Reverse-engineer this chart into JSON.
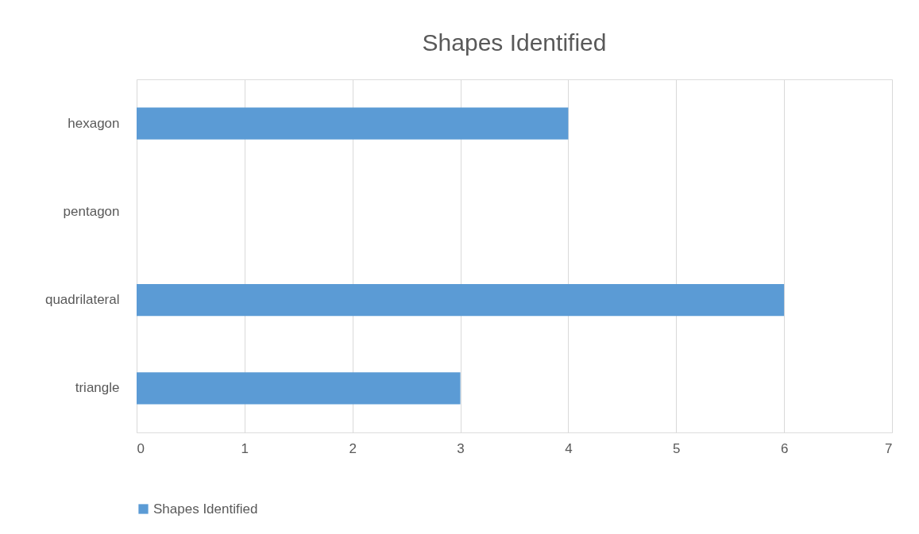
{
  "chart_data": {
    "type": "bar",
    "orientation": "horizontal",
    "title": "Shapes Identified",
    "categories": [
      "hexagon",
      "pentagon",
      "quadrilateral",
      "triangle"
    ],
    "series": [
      {
        "name": "Shapes Identified",
        "color": "#5b9bd5",
        "values": [
          4,
          0,
          6,
          3
        ]
      }
    ],
    "xlim": [
      0,
      7
    ],
    "xticks": [
      0,
      1,
      2,
      3,
      4,
      5,
      6,
      7
    ],
    "grid": "x",
    "legend": "bottom"
  }
}
